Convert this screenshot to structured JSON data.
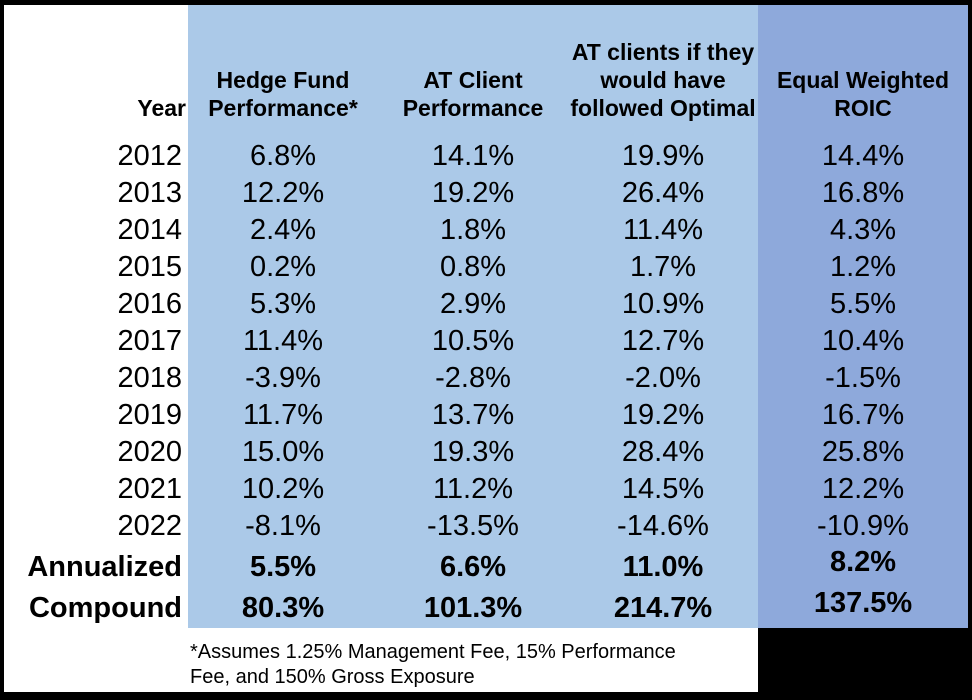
{
  "chart_data": {
    "type": "table",
    "title": "",
    "unit": "%",
    "categories": [
      "2012",
      "2013",
      "2014",
      "2015",
      "2016",
      "2017",
      "2018",
      "2019",
      "2020",
      "2021",
      "2022",
      "Annualized",
      "Compound"
    ],
    "series": [
      {
        "name": "Hedge Fund Performance*",
        "values": [
          6.8,
          12.2,
          2.4,
          0.2,
          5.3,
          11.4,
          -3.9,
          11.7,
          15.0,
          10.2,
          -8.1,
          5.5,
          80.3
        ]
      },
      {
        "name": "AT Client Performance",
        "values": [
          14.1,
          19.2,
          1.8,
          0.8,
          2.9,
          10.5,
          -2.8,
          13.7,
          19.3,
          11.2,
          -13.5,
          6.6,
          101.3
        ]
      },
      {
        "name": "AT clients if they would have followed Optimal",
        "values": [
          19.9,
          26.4,
          11.4,
          1.7,
          10.9,
          12.7,
          -2.0,
          19.2,
          28.4,
          14.5,
          -14.6,
          11.0,
          214.7
        ]
      },
      {
        "name": "Equal Weighted ROIC",
        "values": [
          14.4,
          16.8,
          4.3,
          1.2,
          5.5,
          10.4,
          -1.5,
          16.7,
          25.8,
          12.2,
          -10.9,
          8.2,
          137.5
        ]
      }
    ],
    "footnote": "*Assumes 1.25% Management Fee, 15% Performance Fee, and 150% Gross Exposure",
    "layout": {
      "grid": false,
      "legend": "none"
    }
  },
  "table": {
    "header": {
      "year": "Year",
      "col1": "Hedge Fund\nPerformance*",
      "col2": "AT Client\nPerformance",
      "col3": "AT clients if they\nwould have\nfollowed Optimal",
      "col4": "Equal Weighted\nROIC"
    },
    "rows": [
      {
        "year": "2012",
        "values": [
          "6.8%",
          "14.1%",
          "19.9%",
          "14.4%"
        ]
      },
      {
        "year": "2013",
        "values": [
          "12.2%",
          "19.2%",
          "26.4%",
          "16.8%"
        ]
      },
      {
        "year": "2014",
        "values": [
          "2.4%",
          "1.8%",
          "11.4%",
          "4.3%"
        ]
      },
      {
        "year": "2015",
        "values": [
          "0.2%",
          "0.8%",
          "1.7%",
          "1.2%"
        ]
      },
      {
        "year": "2016",
        "values": [
          "5.3%",
          "2.9%",
          "10.9%",
          "5.5%"
        ]
      },
      {
        "year": "2017",
        "values": [
          "11.4%",
          "10.5%",
          "12.7%",
          "10.4%"
        ]
      },
      {
        "year": "2018",
        "values": [
          "-3.9%",
          "-2.8%",
          "-2.0%",
          "-1.5%"
        ]
      },
      {
        "year": "2019",
        "values": [
          "11.7%",
          "13.7%",
          "19.2%",
          "16.7%"
        ]
      },
      {
        "year": "2020",
        "values": [
          "15.0%",
          "19.3%",
          "28.4%",
          "25.8%"
        ]
      },
      {
        "year": "2021",
        "values": [
          "10.2%",
          "11.2%",
          "14.5%",
          "12.2%"
        ]
      },
      {
        "year": "2022",
        "values": [
          "-8.1%",
          "-13.5%",
          "-14.6%",
          "-10.9%"
        ]
      },
      {
        "year": "Annualized",
        "values": [
          "5.5%",
          "6.6%",
          "11.0%",
          "8.2%"
        ],
        "bold": true,
        "raised": [
          3
        ],
        "kind": "annualized"
      },
      {
        "year": "Compound",
        "values": [
          "80.3%",
          "101.3%",
          "214.7%",
          "137.5%"
        ],
        "bold": true,
        "raised": [
          3
        ],
        "kind": "compound"
      }
    ],
    "footnote": "*Assumes 1.25% Management Fee, 15% Performance\nFee, and 150% Gross Exposure"
  },
  "colors": {
    "light_blue": "#ABC9E8",
    "dark_blue": "#8EA9DB",
    "background": "#FFFFFF",
    "border": "#000000",
    "text": "#000000"
  }
}
